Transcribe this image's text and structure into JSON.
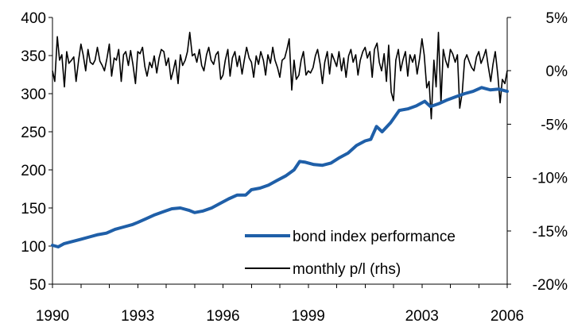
{
  "chart_data": {
    "type": "line",
    "title": "",
    "xlabel": "",
    "ylabel": "",
    "y2label": "",
    "grid": false,
    "legend_position": "bottom-right",
    "x_ticks": [
      "1990",
      "1993",
      "1996",
      "1999",
      "2003",
      "2006"
    ],
    "x_tick_values": [
      1990,
      1993,
      1996,
      1999,
      2003,
      2006
    ],
    "xlim": [
      1990,
      2006
    ],
    "ylim": [
      50,
      400
    ],
    "y_ticks": [
      "400",
      "350",
      "300",
      "250",
      "200",
      "150",
      "100",
      "50"
    ],
    "y_tick_values": [
      400,
      350,
      300,
      250,
      200,
      150,
      100,
      50
    ],
    "y2lim": [
      -0.2,
      0.05
    ],
    "y2_ticks": [
      "5%",
      "0%",
      "-5%",
      "-10%",
      "-15%",
      "-20%"
    ],
    "y2_tick_values": [
      0.05,
      0,
      -0.05,
      -0.1,
      -0.15,
      -0.2
    ],
    "colors": {
      "bond": "#1f5fa8",
      "pl": "#000000"
    },
    "series": [
      {
        "name": "bond index performance",
        "axis": "left",
        "points": [
          [
            1990.0,
            101
          ],
          [
            1990.2,
            99
          ],
          [
            1990.4,
            103
          ],
          [
            1990.6,
            105
          ],
          [
            1990.8,
            107
          ],
          [
            1991.0,
            109
          ],
          [
            1991.3,
            112
          ],
          [
            1991.6,
            115
          ],
          [
            1991.9,
            117
          ],
          [
            1992.2,
            122
          ],
          [
            1992.5,
            125
          ],
          [
            1992.8,
            128
          ],
          [
            1993.0,
            131
          ],
          [
            1993.3,
            136
          ],
          [
            1993.6,
            141
          ],
          [
            1993.9,
            145
          ],
          [
            1994.2,
            149
          ],
          [
            1994.5,
            150
          ],
          [
            1994.8,
            147
          ],
          [
            1995.0,
            144
          ],
          [
            1995.3,
            146
          ],
          [
            1995.6,
            150
          ],
          [
            1995.9,
            156
          ],
          [
            1996.2,
            162
          ],
          [
            1996.5,
            167
          ],
          [
            1996.8,
            167
          ],
          [
            1997.0,
            174
          ],
          [
            1997.3,
            176
          ],
          [
            1997.6,
            180
          ],
          [
            1997.9,
            186
          ],
          [
            1998.2,
            192
          ],
          [
            1998.5,
            200
          ],
          [
            1998.7,
            211
          ],
          [
            1998.9,
            210
          ],
          [
            1999.2,
            207
          ],
          [
            1999.5,
            206
          ],
          [
            1999.8,
            209
          ],
          [
            2000.1,
            216
          ],
          [
            2000.4,
            222
          ],
          [
            2000.7,
            232
          ],
          [
            2001.0,
            238
          ],
          [
            2001.2,
            240
          ],
          [
            2001.4,
            257
          ],
          [
            2001.6,
            250
          ],
          [
            2001.9,
            262
          ],
          [
            2002.2,
            278
          ],
          [
            2002.5,
            280
          ],
          [
            2002.8,
            284
          ],
          [
            2003.1,
            290
          ],
          [
            2003.3,
            283
          ],
          [
            2003.6,
            287
          ],
          [
            2003.9,
            292
          ],
          [
            2004.2,
            296
          ],
          [
            2004.5,
            300
          ],
          [
            2004.8,
            303
          ],
          [
            2005.1,
            308
          ],
          [
            2005.4,
            305
          ],
          [
            2005.7,
            306
          ],
          [
            2006.0,
            303
          ]
        ]
      },
      {
        "name": "monthly p/l (rhs)",
        "axis": "right",
        "points": [
          [
            1990.0,
            0.0
          ],
          [
            1990.08,
            -0.01
          ],
          [
            1990.17,
            0.032
          ],
          [
            1990.25,
            0.01
          ],
          [
            1990.33,
            0.015
          ],
          [
            1990.42,
            -0.015
          ],
          [
            1990.5,
            0.018
          ],
          [
            1990.58,
            0.007
          ],
          [
            1990.67,
            0.01
          ],
          [
            1990.75,
            0.013
          ],
          [
            1990.83,
            -0.01
          ],
          [
            1990.92,
            0.01
          ],
          [
            1991.0,
            0.025
          ],
          [
            1991.08,
            0.015
          ],
          [
            1991.17,
            0.0
          ],
          [
            1991.25,
            0.02
          ],
          [
            1991.33,
            0.008
          ],
          [
            1991.42,
            0.006
          ],
          [
            1991.5,
            0.01
          ],
          [
            1991.58,
            0.022
          ],
          [
            1991.67,
            0.009
          ],
          [
            1991.75,
            0.005
          ],
          [
            1991.83,
            0.0
          ],
          [
            1991.92,
            0.012
          ],
          [
            1992.0,
            0.025
          ],
          [
            1992.08,
            -0.005
          ],
          [
            1992.17,
            0.012
          ],
          [
            1992.25,
            0.01
          ],
          [
            1992.33,
            0.02
          ],
          [
            1992.42,
            -0.01
          ],
          [
            1992.5,
            0.015
          ],
          [
            1992.58,
            0.018
          ],
          [
            1992.67,
            0.005
          ],
          [
            1992.75,
            0.019
          ],
          [
            1992.83,
            0.006
          ],
          [
            1992.92,
            -0.012
          ],
          [
            1993.0,
            0.018
          ],
          [
            1993.08,
            0.016
          ],
          [
            1993.17,
            0.022
          ],
          [
            1993.25,
            0.004
          ],
          [
            1993.33,
            -0.005
          ],
          [
            1993.42,
            0.008
          ],
          [
            1993.5,
            0.003
          ],
          [
            1993.58,
            0.014
          ],
          [
            1993.67,
            -0.002
          ],
          [
            1993.75,
            0.012
          ],
          [
            1993.83,
            0.02
          ],
          [
            1993.92,
            0.018
          ],
          [
            1994.0,
            0.005
          ],
          [
            1994.08,
            0.012
          ],
          [
            1994.17,
            -0.008
          ],
          [
            1994.25,
            0.0
          ],
          [
            1994.33,
            0.01
          ],
          [
            1994.42,
            -0.012
          ],
          [
            1994.5,
            0.015
          ],
          [
            1994.58,
            0.005
          ],
          [
            1994.67,
            0.01
          ],
          [
            1994.75,
            0.018
          ],
          [
            1994.83,
            0.036
          ],
          [
            1994.92,
            0.014
          ],
          [
            1995.0,
            0.016
          ],
          [
            1995.08,
            0.008
          ],
          [
            1995.17,
            0.02
          ],
          [
            1995.25,
            0.005
          ],
          [
            1995.33,
            0.0
          ],
          [
            1995.42,
            0.015
          ],
          [
            1995.5,
            0.022
          ],
          [
            1995.58,
            0.01
          ],
          [
            1995.67,
            0.006
          ],
          [
            1995.75,
            0.015
          ],
          [
            1995.83,
            0.018
          ],
          [
            1995.92,
            -0.008
          ],
          [
            1996.0,
            -0.004
          ],
          [
            1996.08,
            0.01
          ],
          [
            1996.17,
            0.02
          ],
          [
            1996.25,
            -0.005
          ],
          [
            1996.33,
            0.012
          ],
          [
            1996.42,
            0.018
          ],
          [
            1996.5,
            0.004
          ],
          [
            1996.58,
            0.014
          ],
          [
            1996.67,
            -0.003
          ],
          [
            1996.75,
            0.01
          ],
          [
            1996.83,
            0.022
          ],
          [
            1996.92,
            0.012
          ],
          [
            1997.0,
            0.008
          ],
          [
            1997.08,
            -0.006
          ],
          [
            1997.17,
            0.014
          ],
          [
            1997.25,
            0.006
          ],
          [
            1997.33,
            0.018
          ],
          [
            1997.42,
            0.01
          ],
          [
            1997.5,
            -0.004
          ],
          [
            1997.58,
            0.015
          ],
          [
            1997.67,
            0.007
          ],
          [
            1997.75,
            0.022
          ],
          [
            1997.83,
            0.01
          ],
          [
            1997.92,
            0.003
          ],
          [
            1998.0,
            -0.006
          ],
          [
            1998.08,
            0.01
          ],
          [
            1998.17,
            0.012
          ],
          [
            1998.25,
            0.02
          ],
          [
            1998.33,
            0.03
          ],
          [
            1998.42,
            -0.018
          ],
          [
            1998.5,
            0.01
          ],
          [
            1998.58,
            -0.008
          ],
          [
            1998.67,
            -0.004
          ],
          [
            1998.75,
            0.01
          ],
          [
            1998.83,
            0.018
          ],
          [
            1998.92,
            -0.004
          ],
          [
            1999.0,
            0.0
          ],
          [
            1999.08,
            -0.002
          ],
          [
            1999.17,
            0.003
          ],
          [
            1999.25,
            0.014
          ],
          [
            1999.33,
            0.02
          ],
          [
            1999.42,
            0.006
          ],
          [
            1999.5,
            -0.012
          ],
          [
            1999.58,
            0.008
          ],
          [
            1999.67,
            0.018
          ],
          [
            1999.75,
            -0.003
          ],
          [
            1999.83,
            0.016
          ],
          [
            1999.92,
            0.01
          ],
          [
            2000.0,
            0.004
          ],
          [
            2000.08,
            0.018
          ],
          [
            2000.17,
            0.0
          ],
          [
            2000.25,
            0.012
          ],
          [
            2000.33,
            -0.006
          ],
          [
            2000.42,
            0.014
          ],
          [
            2000.5,
            0.02
          ],
          [
            2000.58,
            0.008
          ],
          [
            2000.67,
            0.015
          ],
          [
            2000.75,
            -0.004
          ],
          [
            2000.83,
            0.01
          ],
          [
            2000.92,
            0.018
          ],
          [
            2001.0,
            0.022
          ],
          [
            2001.08,
            0.012
          ],
          [
            2001.17,
            0.018
          ],
          [
            2001.25,
            -0.006
          ],
          [
            2001.33,
            0.02
          ],
          [
            2001.42,
            0.026
          ],
          [
            2001.5,
            0.008
          ],
          [
            2001.58,
            0.0
          ],
          [
            2001.67,
            0.016
          ],
          [
            2001.75,
            -0.01
          ],
          [
            2001.83,
            0.024
          ],
          [
            2001.92,
            -0.02
          ],
          [
            2002.0,
            -0.028
          ],
          [
            2002.08,
            0.01
          ],
          [
            2002.17,
            0.02
          ],
          [
            2002.25,
            0.0
          ],
          [
            2002.33,
            0.01
          ],
          [
            2002.42,
            0.018
          ],
          [
            2002.5,
            -0.005
          ],
          [
            2002.58,
            0.015
          ],
          [
            2002.67,
            0.008
          ],
          [
            2002.75,
            0.015
          ],
          [
            2002.83,
            -0.003
          ],
          [
            2002.92,
            0.012
          ],
          [
            2003.0,
            0.03
          ],
          [
            2003.08,
            0.015
          ],
          [
            2003.17,
            -0.016
          ],
          [
            2003.25,
            -0.01
          ],
          [
            2003.33,
            -0.045
          ],
          [
            2003.42,
            0.01
          ],
          [
            2003.5,
            -0.015
          ],
          [
            2003.58,
            0.036
          ],
          [
            2003.67,
            -0.03
          ],
          [
            2003.75,
            0.02
          ],
          [
            2003.83,
            0.01
          ],
          [
            2003.92,
            0.003
          ],
          [
            2004.0,
            0.02
          ],
          [
            2004.08,
            0.016
          ],
          [
            2004.17,
            0.008
          ],
          [
            2004.25,
            0.015
          ],
          [
            2004.33,
            -0.035
          ],
          [
            2004.42,
            -0.02
          ],
          [
            2004.5,
            0.01
          ],
          [
            2004.58,
            0.015
          ],
          [
            2004.67,
            0.008
          ],
          [
            2004.75,
            0.003
          ],
          [
            2004.83,
            0.0
          ],
          [
            2004.92,
            0.013
          ],
          [
            2005.0,
            0.018
          ],
          [
            2005.08,
            0.007
          ],
          [
            2005.17,
            0.013
          ],
          [
            2005.25,
            0.02
          ],
          [
            2005.33,
            0.005
          ],
          [
            2005.42,
            -0.01
          ],
          [
            2005.5,
            0.006
          ],
          [
            2005.58,
            0.018
          ],
          [
            2005.67,
            -0.004
          ],
          [
            2005.75,
            -0.03
          ],
          [
            2005.83,
            -0.008
          ],
          [
            2005.92,
            -0.012
          ],
          [
            2006.0,
            0.0
          ]
        ]
      }
    ]
  }
}
